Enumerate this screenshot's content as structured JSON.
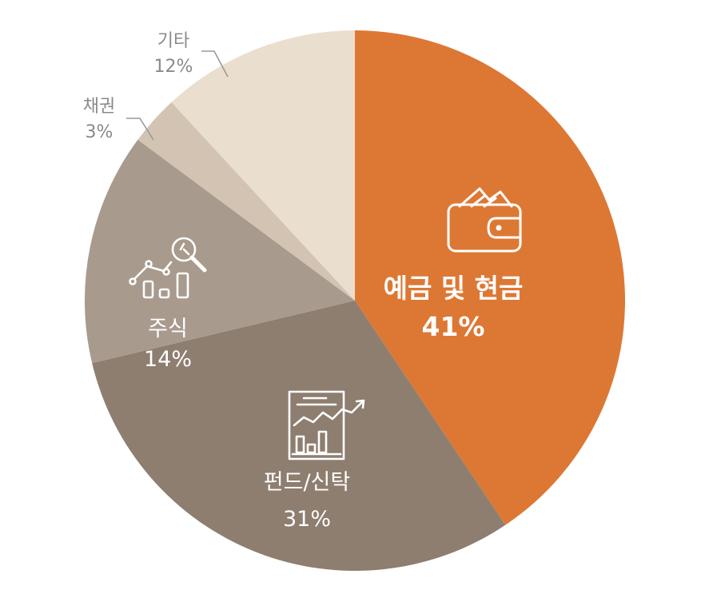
{
  "chart_data": {
    "type": "pie",
    "title": "",
    "start_angle_deg": 0,
    "direction": "clockwise",
    "slices": [
      {
        "label": "예금 및 현금",
        "value": 41,
        "value_label": "41%",
        "color": "#DD7834",
        "label_color": "#ffffff",
        "icon": "wallet-icon",
        "label_placement": "inside"
      },
      {
        "label": "펀드/신탁",
        "value": 31,
        "value_label": "31%",
        "color": "#8E7E70",
        "label_color": "#ffffff",
        "icon": "report-chart-icon",
        "label_placement": "inside"
      },
      {
        "label": "주식",
        "value": 14,
        "value_label": "14%",
        "color": "#A89A8D",
        "label_color": "#ffffff",
        "icon": "stock-analysis-icon",
        "label_placement": "inside"
      },
      {
        "label": "채권",
        "value": 3,
        "value_label": "3%",
        "color": "#D2C3B3",
        "label_color": "#8a8a8a",
        "icon": "",
        "label_placement": "outside"
      },
      {
        "label": "기타",
        "value": 12,
        "value_label": "12%",
        "color": "#EADFCE",
        "label_color": "#8a8a8a",
        "icon": "",
        "label_placement": "outside"
      }
    ]
  }
}
